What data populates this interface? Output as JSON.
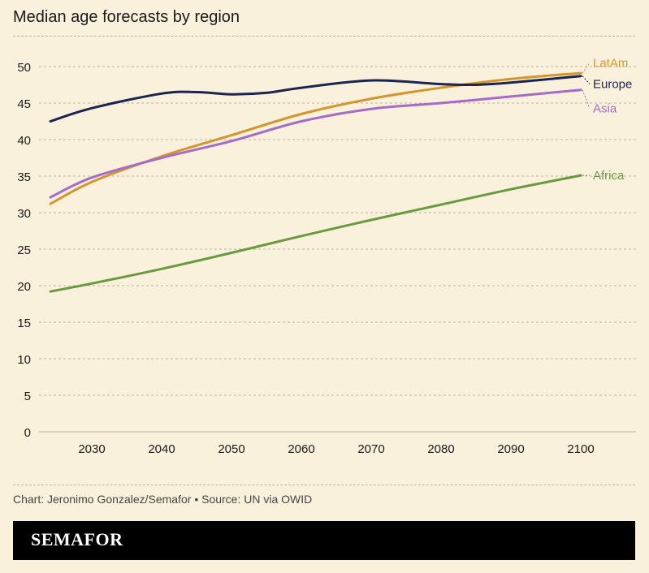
{
  "title": "Median age forecasts by region",
  "source": "Chart: Jeronimo Gonzalez/Semafor • Source: UN via OWID",
  "brand": "SEMAFOR",
  "colors": {
    "background": "#f9f1dc",
    "LatAm": "#d4952f",
    "Europe": "#1c2450",
    "Asia": "#a46cc8",
    "Africa": "#6a9a3f"
  },
  "chart_data": {
    "type": "line",
    "title": "Median age forecasts by region",
    "xlabel": "",
    "ylabel": "",
    "xlim": [
      2023,
      2100
    ],
    "ylim": [
      0,
      50
    ],
    "x_ticks": [
      2030,
      2040,
      2050,
      2060,
      2070,
      2080,
      2090,
      2100
    ],
    "y_ticks": [
      0,
      5,
      10,
      15,
      20,
      25,
      30,
      35,
      40,
      45,
      50
    ],
    "grid": "horizontal dashed",
    "legend": "direct labels at right end of lines",
    "series": [
      {
        "name": "LatAm",
        "color": "#d4952f",
        "x": [
          2023,
          2030,
          2040,
          2050,
          2060,
          2070,
          2080,
          2090,
          2100
        ],
        "y": [
          31.2,
          34.2,
          37.7,
          40.6,
          43.5,
          45.6,
          47.1,
          48.3,
          49.1
        ]
      },
      {
        "name": "Europe",
        "color": "#1c2450",
        "x": [
          2023,
          2030,
          2040,
          2045,
          2050,
          2055,
          2060,
          2070,
          2080,
          2085,
          2090,
          2100
        ],
        "y": [
          42.5,
          44.3,
          46.3,
          46.5,
          46.2,
          46.4,
          47.1,
          48.1,
          47.6,
          47.5,
          47.8,
          48.7
        ]
      },
      {
        "name": "Asia",
        "color": "#a46cc8",
        "x": [
          2023,
          2030,
          2040,
          2050,
          2060,
          2070,
          2080,
          2090,
          2100
        ],
        "y": [
          32.1,
          34.8,
          37.5,
          39.8,
          42.5,
          44.2,
          45.0,
          45.9,
          46.8
        ]
      },
      {
        "name": "Africa",
        "color": "#6a9a3f",
        "x": [
          2023,
          2030,
          2040,
          2050,
          2060,
          2070,
          2080,
          2090,
          2100
        ],
        "y": [
          19.2,
          20.3,
          22.3,
          24.5,
          26.8,
          29.0,
          31.1,
          33.2,
          35.1
        ]
      }
    ],
    "end_labels": [
      {
        "series": "LatAm",
        "text": "LatAm",
        "label_y": 50.5
      },
      {
        "series": "Europe",
        "text": "Europe",
        "label_y": 47.6
      },
      {
        "series": "Asia",
        "text": "Asia",
        "label_y": 44.3
      },
      {
        "series": "Africa",
        "text": "Africa",
        "label_y": 35.1
      }
    ]
  }
}
